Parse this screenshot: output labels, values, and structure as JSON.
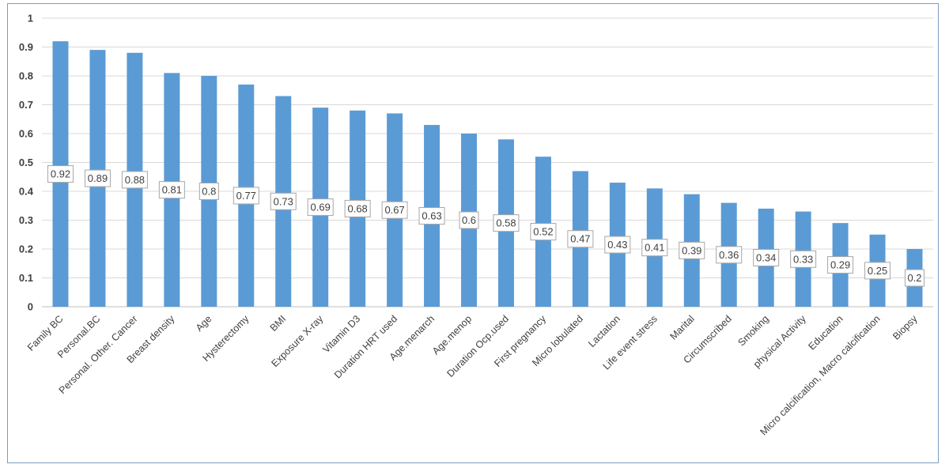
{
  "chart_data": {
    "type": "bar",
    "categories": [
      "Family BC",
      "Personal.BC",
      "Personal. Other. Cancer",
      "Breast density",
      "Age",
      "Hysterectomy",
      "BMI",
      "Exposure X-ray",
      "Vitamin D3",
      "Duration HRT  used",
      "Age.menarch",
      "Age.menop",
      "Duration Ocp.used",
      "First pregnancy",
      "Micro lobulated",
      "Lactation",
      "Life event stress",
      "Marital",
      "Circumscribed",
      "Smoking",
      "physical Activity",
      "Education",
      "Micro calcification, Macro calcification",
      "Biopsy"
    ],
    "values": [
      0.92,
      0.89,
      0.88,
      0.81,
      0.8,
      0.77,
      0.73,
      0.69,
      0.68,
      0.67,
      0.63,
      0.6,
      0.58,
      0.52,
      0.47,
      0.43,
      0.41,
      0.39,
      0.36,
      0.34,
      0.33,
      0.29,
      0.25,
      0.2
    ],
    "data_labels": [
      "0.92",
      "0.89",
      "0.88",
      "0.81",
      "0.8",
      "0.77",
      "0.73",
      "0.69",
      "0.68",
      "0.67",
      "0.63",
      "0.6",
      "0.58",
      "0.52",
      "0.47",
      "0.43",
      "0.41",
      "0.39",
      "0.36",
      "0.34",
      "0.33",
      "0.29",
      "0.25",
      "0.2"
    ],
    "y_ticks": [
      "0",
      "0.1",
      "0.2",
      "0.3",
      "0.4",
      "0.5",
      "0.6",
      "0.7",
      "0.8",
      "0.9",
      "1"
    ],
    "ylim": [
      0,
      1
    ],
    "grid": true,
    "legend": "none",
    "title": "",
    "xlabel": "",
    "ylabel": "",
    "bar_color": "#5b9bd5",
    "grid_color": "#d9d9d9"
  }
}
